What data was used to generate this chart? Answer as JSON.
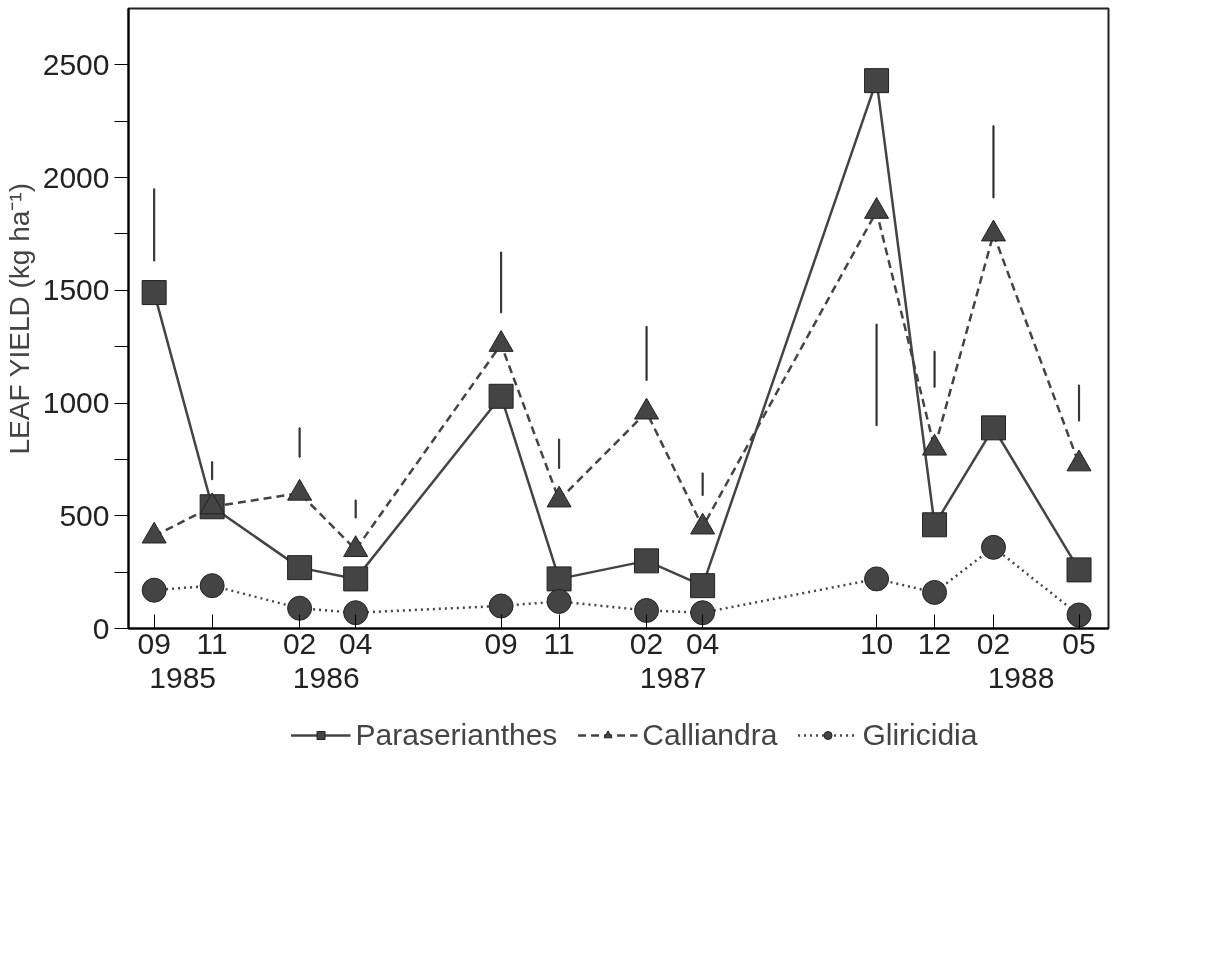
{
  "chart_data": {
    "type": "line",
    "ylabel": "LEAF YIELD (kg ha⁻¹)",
    "x": [
      "1985-09",
      "1985-11",
      "1986-02",
      "1986-04",
      "1986-09",
      "1986-11",
      "1987-02",
      "1987-04",
      "1987-10",
      "1987-12",
      "1988-02",
      "1988-05"
    ],
    "series": [
      {
        "name": "Paraserianthes",
        "color": "#444444",
        "marker": "square",
        "line_style": "solid",
        "values": [
          1490,
          540,
          270,
          220,
          1030,
          220,
          300,
          190,
          2430,
          460,
          890,
          260
        ]
      },
      {
        "name": "Calliandra",
        "color": "#444444",
        "marker": "triangle",
        "line_style": "dashed",
        "values": [
          410,
          540,
          600,
          350,
          1260,
          570,
          960,
          450,
          1850,
          800,
          1750,
          730
        ]
      },
      {
        "name": "Gliricidia",
        "color": "#444444",
        "marker": "circle",
        "line_style": "dotted",
        "values": [
          170,
          190,
          90,
          70,
          100,
          120,
          80,
          70,
          220,
          160,
          360,
          60
        ]
      },
      {
        "type": "bar",
        "color": "#333333",
        "base": [
          1630,
          660,
          760,
          490,
          1400,
          710,
          1100,
          590,
          900,
          1070,
          1910,
          920
        ],
        "values": [
          320,
          80,
          130,
          80,
          270,
          130,
          240,
          100,
          450,
          160,
          320,
          160
        ]
      }
    ],
    "xlim": [
      "1985-08-05",
      "1988-06-01"
    ],
    "xticks": [
      {
        "value": "1985-09",
        "label": "09"
      },
      {
        "value": "1985-11",
        "label": "11"
      },
      {
        "value": "1986-02",
        "label": "02"
      },
      {
        "value": "1986-04",
        "label": "04"
      },
      {
        "value": "1986-09",
        "label": "09"
      },
      {
        "value": "1986-11",
        "label": "11"
      },
      {
        "value": "1987-02",
        "label": "02"
      },
      {
        "value": "1987-04",
        "label": "04"
      },
      {
        "value": "1987-10",
        "label": "10"
      },
      {
        "value": "1987-12",
        "label": "12"
      },
      {
        "value": "1988-02",
        "label": "02"
      },
      {
        "value": "1988-05",
        "label": "05"
      }
    ],
    "x2lim": [
      "1985-08-05",
      "1988-06-01"
    ],
    "x2ticks": [
      {
        "value": "1985-10",
        "label": "1985"
      },
      {
        "value": "1986-03",
        "label": "1986"
      },
      {
        "value": "1987-03",
        "label": "1987"
      },
      {
        "value": "1988-03",
        "label": "1988"
      }
    ],
    "ylim": [
      0,
      2750
    ],
    "yticks": [
      0,
      {
        "value": 250,
        "label": null
      },
      500,
      {
        "value": 750,
        "label": null
      },
      1000,
      {
        "value": 1250,
        "label": null
      },
      1500,
      {
        "value": 1750,
        "label": null
      },
      2000,
      {
        "value": 2250,
        "label": null
      },
      2500
    ],
    "grid": false,
    "legend": "bottom"
  }
}
